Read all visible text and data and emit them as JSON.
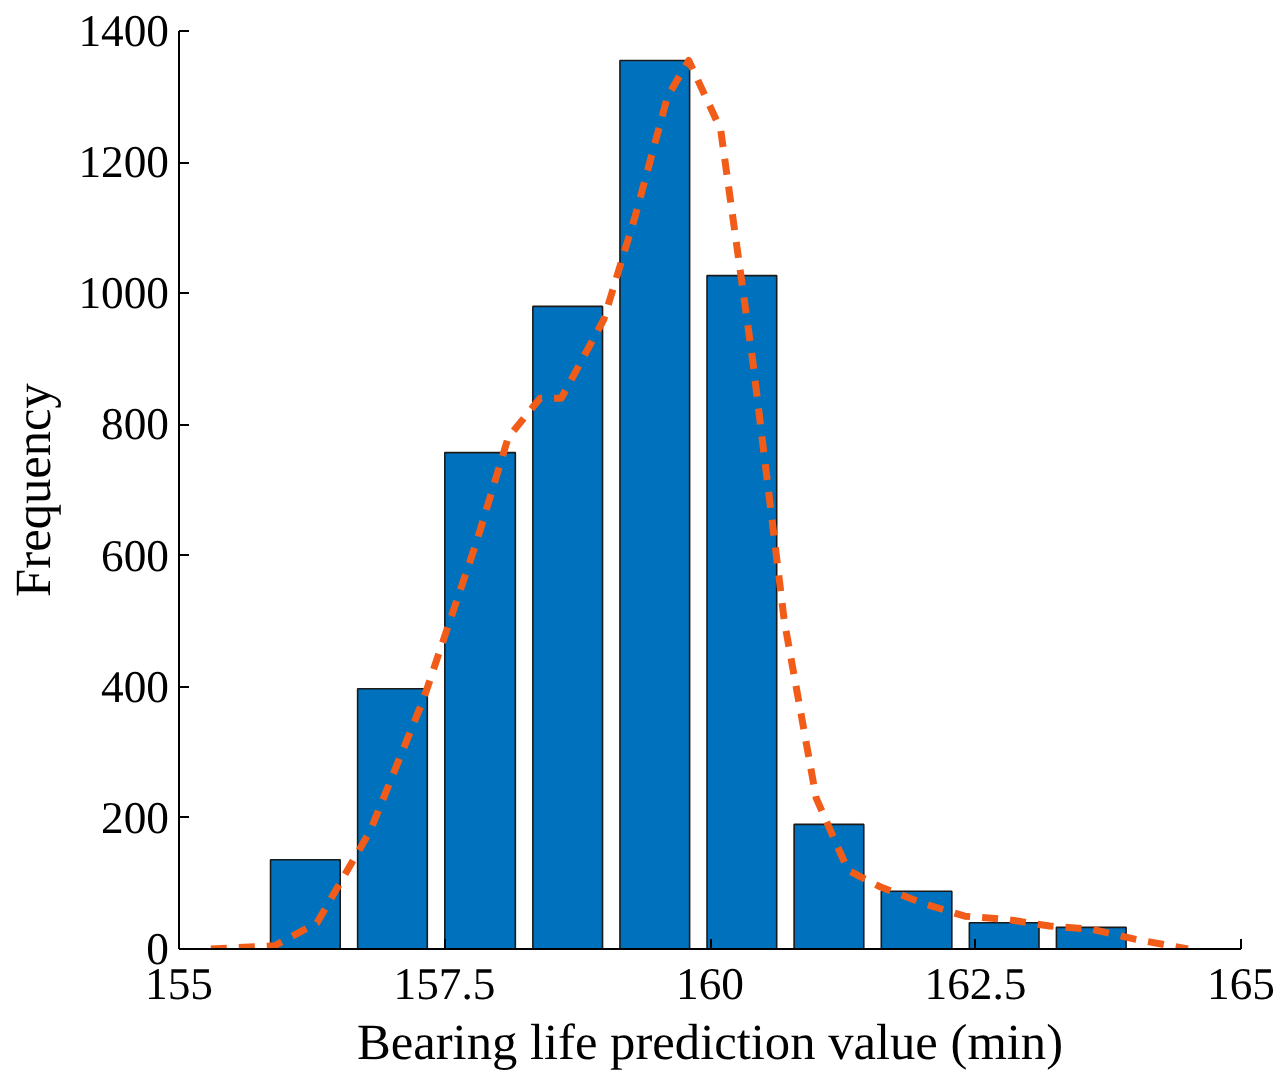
{
  "chart_data": {
    "type": "histogram",
    "xlabel": "Bearing life prediction value (min)",
    "ylabel": "Frequency",
    "bins": [
      155.78,
      156.6,
      157.42,
      158.25,
      159.07,
      159.89,
      160.71,
      161.53,
      162.36,
      163.18,
      164.0
    ],
    "values": [
      136,
      397,
      757,
      980,
      1355,
      1027,
      190,
      88,
      40,
      33
    ],
    "color": "#0072bd",
    "series": [
      {
        "type": "line",
        "color": "#f25c19",
        "line_style": "dashed",
        "x": [
          155.3,
          155.9,
          156.3,
          156.8,
          157.3,
          157.8,
          158.1,
          158.4,
          158.6,
          159.0,
          159.3,
          159.6,
          159.8,
          160.1,
          160.4,
          160.7,
          161.0,
          161.3,
          161.6,
          162.0,
          162.4,
          162.8,
          163.2,
          163.6,
          164.0,
          164.5
        ],
        "values": [
          0,
          5,
          40,
          180,
          380,
          620,
          780,
          840,
          840,
          960,
          1120,
          1300,
          1355,
          1250,
          900,
          500,
          230,
          120,
          95,
          70,
          50,
          45,
          35,
          30,
          15,
          0
        ]
      }
    ],
    "xlim": [
      155,
      165
    ],
    "xticks": [
      155,
      157.5,
      160,
      162.5,
      165
    ],
    "ylim": [
      0,
      1400
    ],
    "yticks": [
      0,
      200,
      400,
      600,
      800,
      1000,
      1200,
      1400
    ],
    "grid": false
  }
}
